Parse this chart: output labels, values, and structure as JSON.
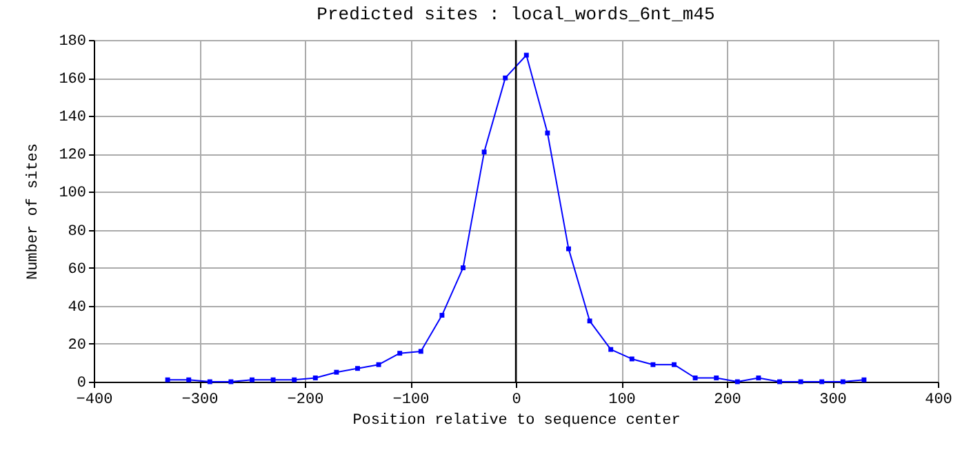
{
  "chart_data": {
    "type": "line",
    "title": "Predicted sites : local_words_6nt_m45",
    "xlabel": "Position relative to sequence center",
    "ylabel": "Number of sites",
    "x": [
      -330,
      -310,
      -290,
      -270,
      -250,
      -230,
      -210,
      -190,
      -170,
      -150,
      -130,
      -110,
      -90,
      -70,
      -50,
      -30,
      -10,
      10,
      30,
      50,
      70,
      90,
      110,
      130,
      150,
      170,
      190,
      210,
      230,
      250,
      270,
      290,
      310,
      330
    ],
    "series": [
      {
        "color": "#0000ff",
        "values": [
          1,
          1,
          0,
          0,
          1,
          1,
          1,
          2,
          5,
          7,
          9,
          15,
          16,
          35,
          60,
          121,
          160,
          172,
          131,
          70,
          32,
          17,
          12,
          9,
          9,
          2,
          2,
          0,
          2,
          0,
          0,
          0,
          0,
          1
        ]
      }
    ],
    "xlim": [
      -400,
      400
    ],
    "xticks": [
      -400,
      -300,
      -200,
      -100,
      0,
      100,
      200,
      300,
      400
    ],
    "ylim": [
      0,
      180
    ],
    "yticks": [
      0,
      20,
      40,
      60,
      80,
      100,
      120,
      140,
      160,
      180
    ],
    "ref_lines": [
      {
        "axis": "x",
        "value": 0,
        "color": "#000000"
      }
    ],
    "grid": true,
    "marker": "square",
    "line_style": "solid"
  }
}
